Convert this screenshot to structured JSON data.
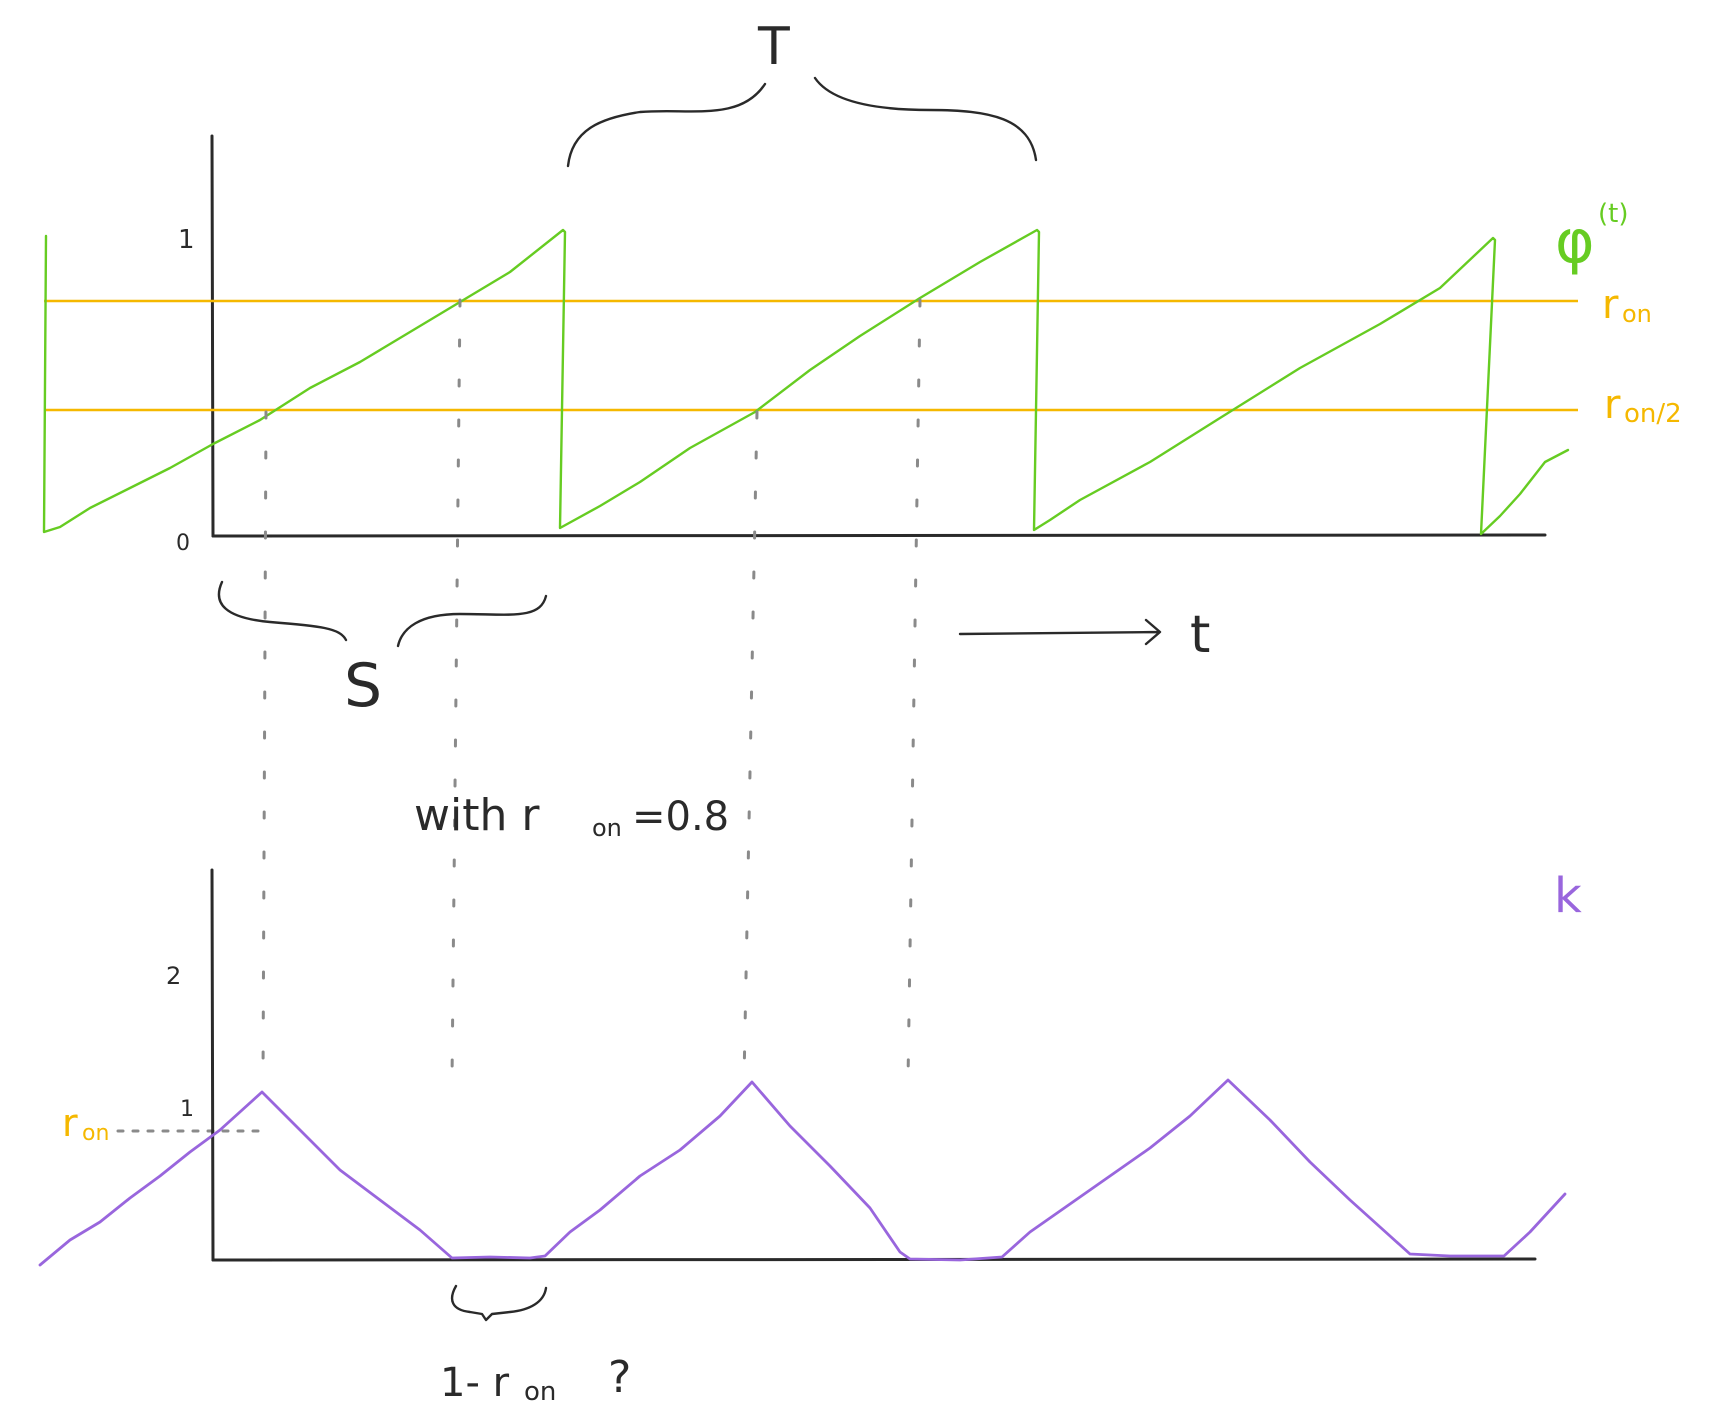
{
  "labels": {
    "period": "T",
    "phi": "φ",
    "phi_sup": "(t)",
    "r_on": "r",
    "r_on_sub": "on",
    "r_on_half_sub": "on/2",
    "shift": "S",
    "time": "t",
    "note_prefix": "with r",
    "note_sub": "on",
    "note_suffix": "=0.8",
    "k": "k",
    "one_minus_prefix": "1- r",
    "one_minus_sub": "on",
    "question": "?",
    "r_on_left": "r",
    "r_on_left_sub": "on"
  },
  "ticks": {
    "top_one": "1",
    "top_zero": "0",
    "bottom_two": "2",
    "bottom_one": "1"
  },
  "colors": {
    "phi": "#66cc22",
    "thresholds": "#f5b800",
    "k": "#9966dd",
    "ink": "#2a2a2a",
    "guides": "#8a8a8a"
  },
  "parameters": {
    "r_on": 0.8
  }
}
